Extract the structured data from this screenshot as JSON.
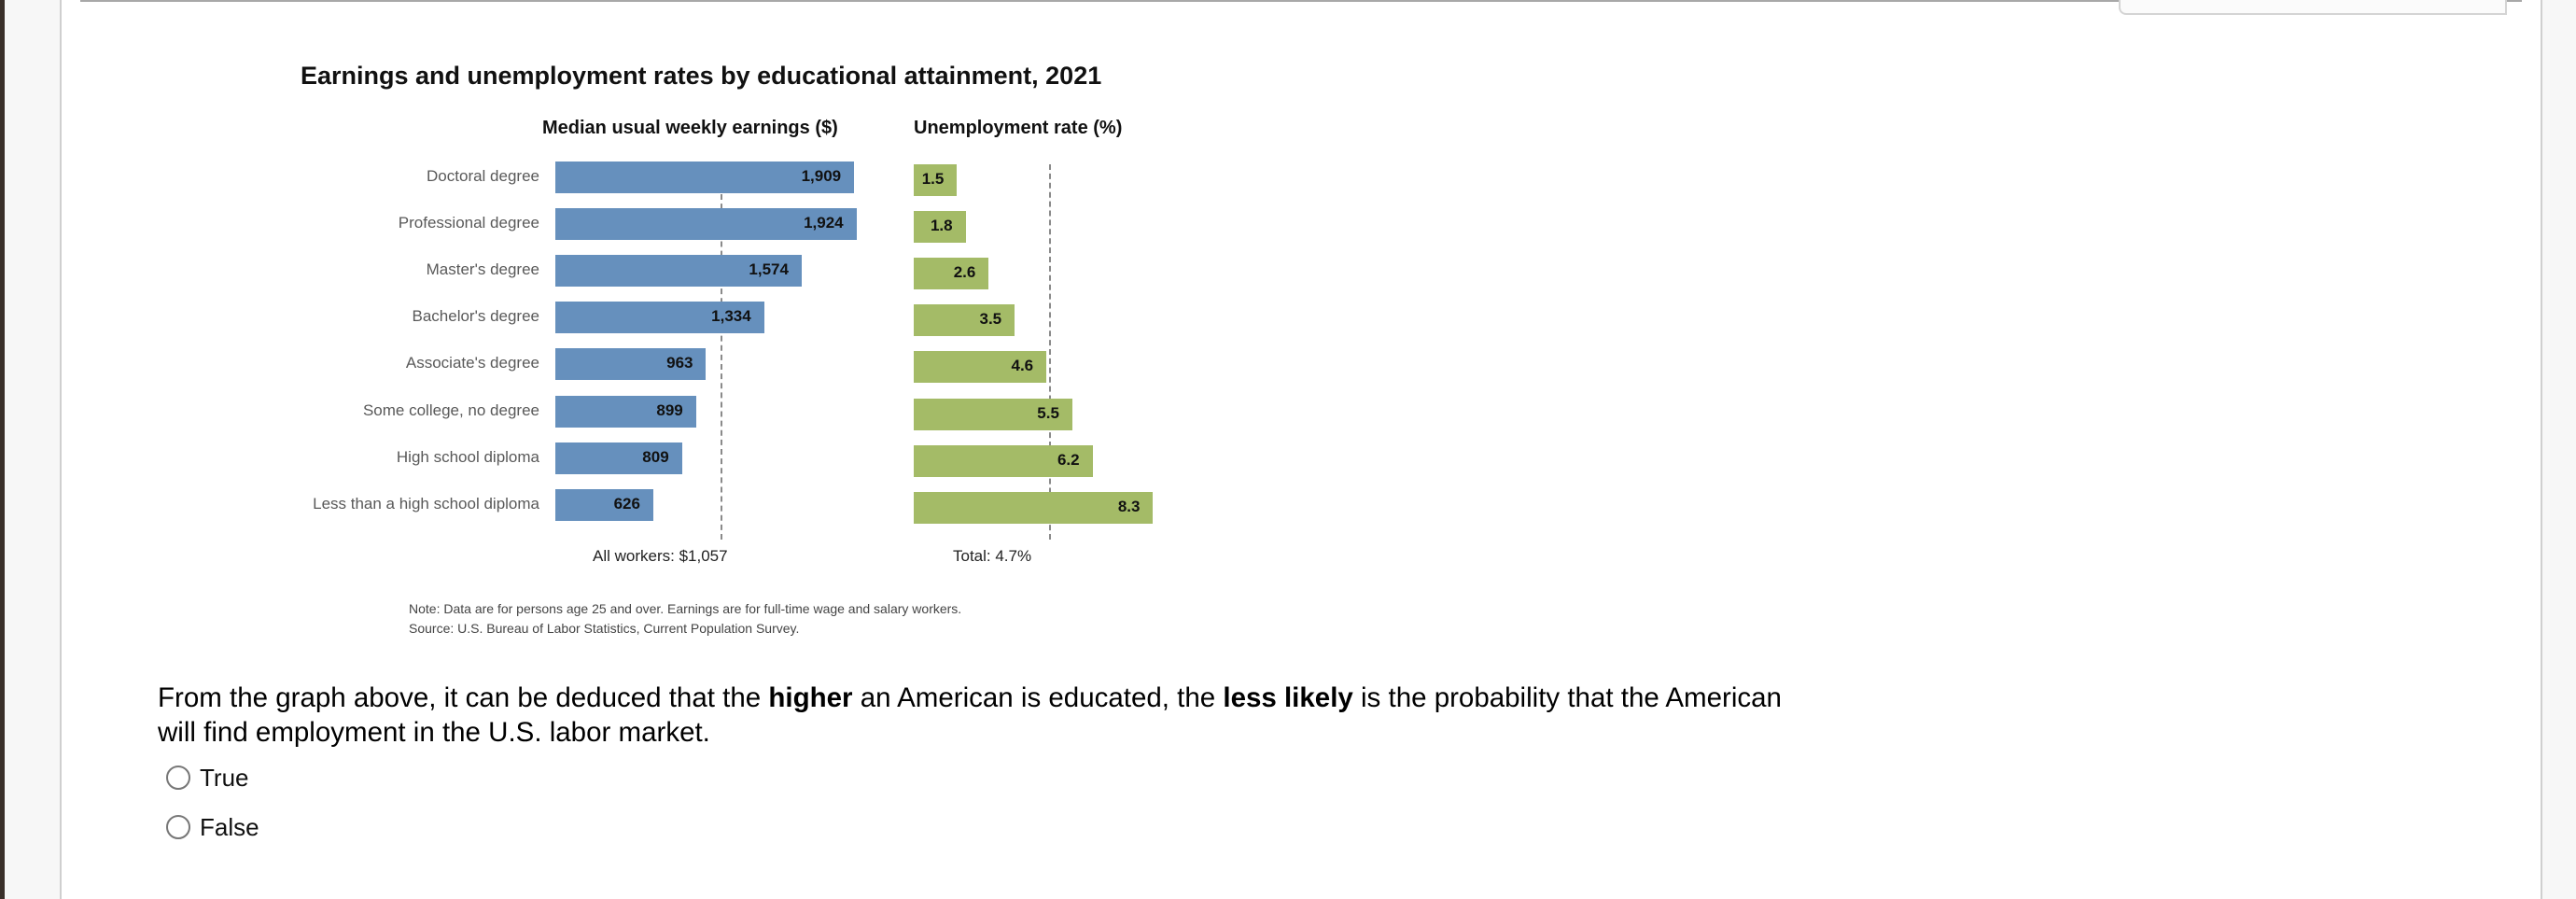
{
  "chart_data": {
    "type": "bar",
    "title": "Earnings and unemployment rates by educational attainment, 2021",
    "categories": [
      "Doctoral degree",
      "Professional degree",
      "Master's degree",
      "Bachelor's degree",
      "Associate's degree",
      "Some college, no degree",
      "High school diploma",
      "Less than a high school diploma"
    ],
    "series": [
      {
        "name": "Median usual weekly earnings ($)",
        "values": [
          1909,
          1924,
          1574,
          1334,
          963,
          899,
          809,
          626
        ],
        "labels": [
          "1,909",
          "1,924",
          "1,574",
          "1,334",
          "963",
          "899",
          "809",
          "626"
        ],
        "color": "#6690bd",
        "reference": {
          "value": 1057,
          "label": "All workers: $1,057"
        }
      },
      {
        "name": "Unemployment rate (%)",
        "values": [
          1.5,
          1.8,
          2.6,
          3.5,
          4.6,
          5.5,
          6.2,
          8.3
        ],
        "labels": [
          "1.5",
          "1.8",
          "2.6",
          "3.5",
          "4.6",
          "5.5",
          "6.2",
          "8.3"
        ],
        "color": "#a4bb67",
        "reference": {
          "value": 4.7,
          "label": "Total: 4.7%"
        }
      }
    ],
    "notes": [
      "Note: Data are for persons age 25 and over. Earnings are for full-time wage and salary workers.",
      "Source: U.S. Bureau of Labor Statistics, Current Population Survey."
    ],
    "grid": false
  },
  "question": {
    "line1_a": "From the graph above, it can be deduced that the ",
    "line1_b": "higher",
    "line1_c": " an American is educated, the ",
    "line1_d": "less likely",
    "line1_e": " is the probability that the American",
    "line2": "will find employment in the U.S. labor market.",
    "options": [
      "True",
      "False"
    ]
  }
}
